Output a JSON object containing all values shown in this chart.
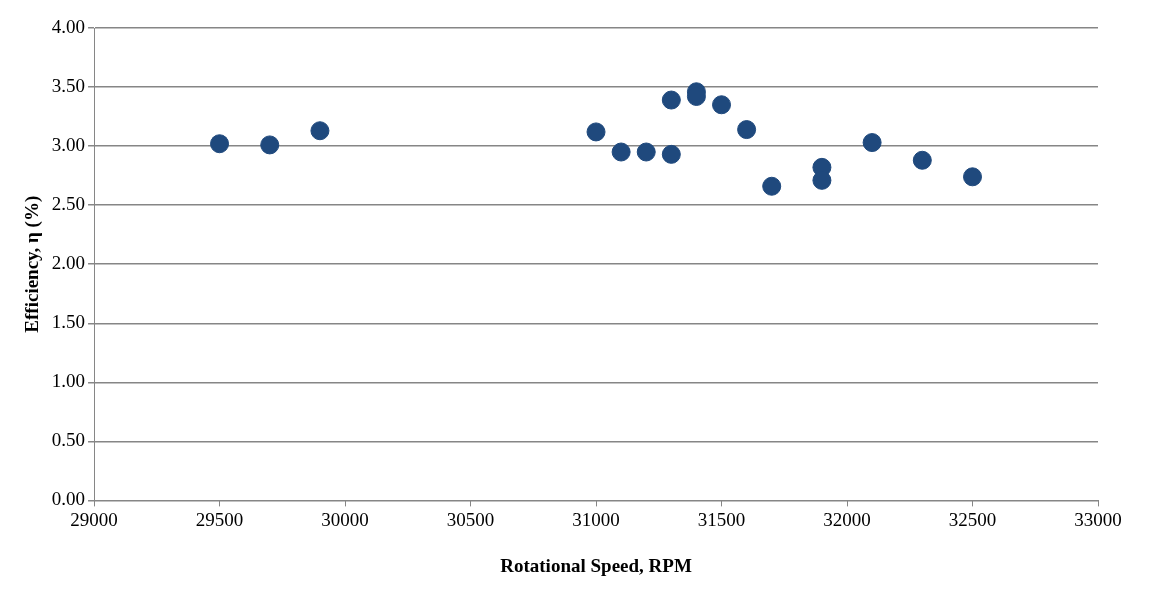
{
  "chart_data": {
    "type": "scatter",
    "xlabel": "Rotational Speed, RPM",
    "ylabel": "Efficiency, η (%)",
    "x": [
      29500,
      29700,
      29900,
      31000,
      31100,
      31200,
      31300,
      31300,
      31400,
      31400,
      31500,
      31600,
      31700,
      31900,
      31900,
      32100,
      32300,
      32500
    ],
    "values": [
      3.02,
      3.01,
      3.13,
      3.12,
      2.95,
      2.95,
      3.39,
      2.93,
      3.46,
      3.42,
      3.35,
      3.14,
      2.66,
      2.82,
      2.71,
      3.03,
      2.88,
      2.74
    ],
    "color": "#1f497d",
    "marker": "circle",
    "grid": "y",
    "legend": false,
    "xlim": [
      29000,
      33000
    ],
    "xticks": [
      29000,
      29500,
      30000,
      30500,
      31000,
      31500,
      32000,
      32500,
      33000
    ],
    "ylim": [
      0,
      4
    ],
    "yticks": [
      {
        "value": 0,
        "label": "0.00"
      },
      {
        "value": 0.5,
        "label": "0.50"
      },
      {
        "value": 1,
        "label": "1.00"
      },
      {
        "value": 1.5,
        "label": "1.50"
      },
      {
        "value": 2,
        "label": "2.00"
      },
      {
        "value": 2.5,
        "label": "2.50"
      },
      {
        "value": 3,
        "label": "3.00"
      },
      {
        "value": 3.5,
        "label": "3.50"
      },
      {
        "value": 4,
        "label": "4.00"
      }
    ]
  }
}
